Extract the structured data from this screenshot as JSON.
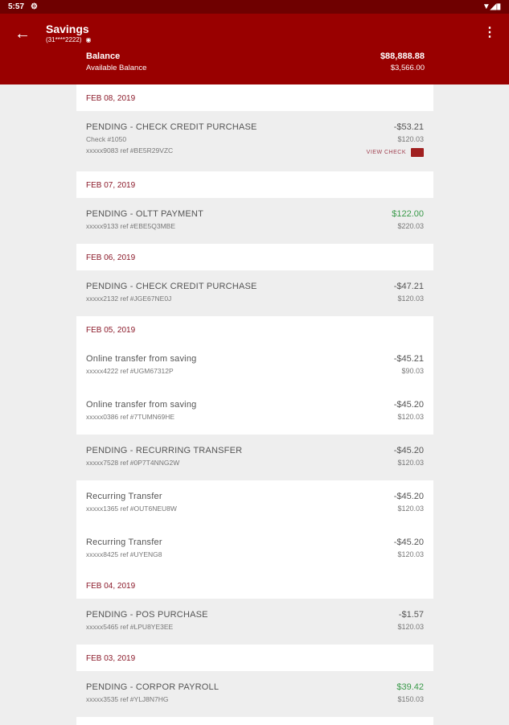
{
  "status": {
    "time": "5:57"
  },
  "header": {
    "title": "Savings",
    "account": "(31****2222)",
    "balance_label": "Balance",
    "balance": "$88,888.88",
    "available_label": "Available Balance",
    "available": "$3,566.00"
  },
  "colors": {
    "header": "#990000",
    "status_bar": "#6f0000",
    "date": "#8b1a2a",
    "positive": "#3a9a4a"
  },
  "groups": [
    {
      "date": "FEB 08, 2019",
      "items": [
        {
          "desc": "PENDING - CHECK CREDIT PURCHASE",
          "check": "Check #1050",
          "ref": "xxxxx9083 ref #BE5R29VZC",
          "amount": "-$53.21",
          "balance": "$120.03",
          "pending": true,
          "view_check": "VIEW CHECK"
        }
      ]
    },
    {
      "date": "FEB 07, 2019",
      "items": [
        {
          "desc": "PENDING - OLTT PAYMENT",
          "ref": "xxxxx9133 ref #EBE5Q3MBE",
          "amount": "$122.00",
          "balance": "$220.03",
          "pending": true,
          "positive": true
        }
      ]
    },
    {
      "date": "FEB 06, 2019",
      "items": [
        {
          "desc": "PENDING - CHECK CREDIT PURCHASE",
          "ref": "xxxxx2132 ref #JGE67NE0J",
          "amount": "-$47.21",
          "balance": "$120.03",
          "pending": true
        }
      ]
    },
    {
      "date": "FEB 05, 2019",
      "items": [
        {
          "desc": "Online transfer from saving",
          "ref": "xxxxx4222 ref #UGM67312P",
          "amount": "-$45.21",
          "balance": "$90.03"
        },
        {
          "desc": "Online transfer from saving",
          "ref": "xxxxx0386 ref #7TUMN69HE",
          "amount": "-$45.20",
          "balance": "$120.03"
        },
        {
          "desc": "PENDING - RECURRING TRANSFER",
          "ref": "xxxxx7528 ref #0P7T4NNG2W",
          "amount": "-$45.20",
          "balance": "$120.03",
          "pending": true
        },
        {
          "desc": "Recurring Transfer",
          "ref": "xxxxx1365 ref #OUT6NEU8W",
          "amount": "-$45.20",
          "balance": "$120.03"
        },
        {
          "desc": "Recurring Transfer",
          "ref": "xxxxx8425 ref #UYENG8",
          "amount": "-$45.20",
          "balance": "$120.03"
        }
      ]
    },
    {
      "date": "FEB 04, 2019",
      "items": [
        {
          "desc": "PENDING - POS PURCHASE",
          "ref": "xxxxx5465 ref #LPU8YE3EE",
          "amount": "-$1.57",
          "balance": "$120.03",
          "pending": true
        }
      ]
    },
    {
      "date": "FEB 03, 2019",
      "items": [
        {
          "desc": "PENDING - CORPOR PAYROLL",
          "ref": "xxxxx3535 ref #YLJ8N7HG",
          "amount": "$39.42",
          "balance": "$150.03",
          "pending": true,
          "positive": true
        }
      ]
    }
  ]
}
